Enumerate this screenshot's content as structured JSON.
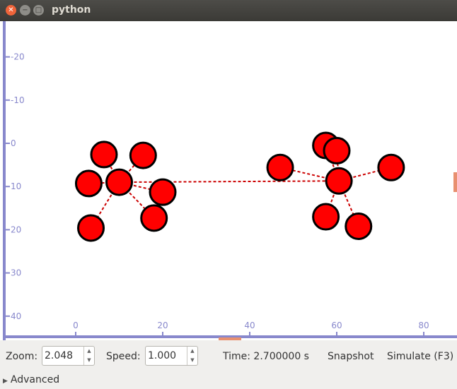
{
  "window": {
    "title": "python"
  },
  "plot": {
    "y_ticks": [
      "-20",
      "-10",
      "0",
      "10",
      "20",
      "30",
      "40"
    ],
    "x_ticks": [
      "0",
      "20",
      "40",
      "60",
      "80"
    ],
    "axis_color": "#8888cc",
    "node_color": "#ff0000",
    "link_color": "#cc0000",
    "clusters": [
      {
        "hub": [
          10,
          9
        ],
        "leaves": [
          [
            6.5,
            2.6
          ],
          [
            15.5,
            2.8
          ],
          [
            3,
            9.3
          ],
          [
            20,
            11.3
          ],
          [
            3.5,
            19.6
          ],
          [
            18,
            17.3
          ]
        ]
      },
      {
        "hub": [
          60.5,
          8.7
        ],
        "leaves": [
          [
            57.5,
            0.5
          ],
          [
            60,
            1.7
          ],
          [
            47,
            5.6
          ],
          [
            72.5,
            5.6
          ],
          [
            57.5,
            17
          ],
          [
            65,
            19.2
          ]
        ]
      }
    ],
    "bridge": [
      [
        10,
        9
      ],
      [
        60.5,
        8.7
      ]
    ]
  },
  "toolbar": {
    "zoom_label": "Zoom:",
    "zoom_value": "2.048",
    "speed_label": "Speed:",
    "speed_value": "1.000",
    "time_text": "Time: 2.700000 s",
    "snapshot_label": "Snapshot",
    "simulate_label": "Simulate (F3)"
  },
  "advanced": {
    "label": "Advanced"
  }
}
